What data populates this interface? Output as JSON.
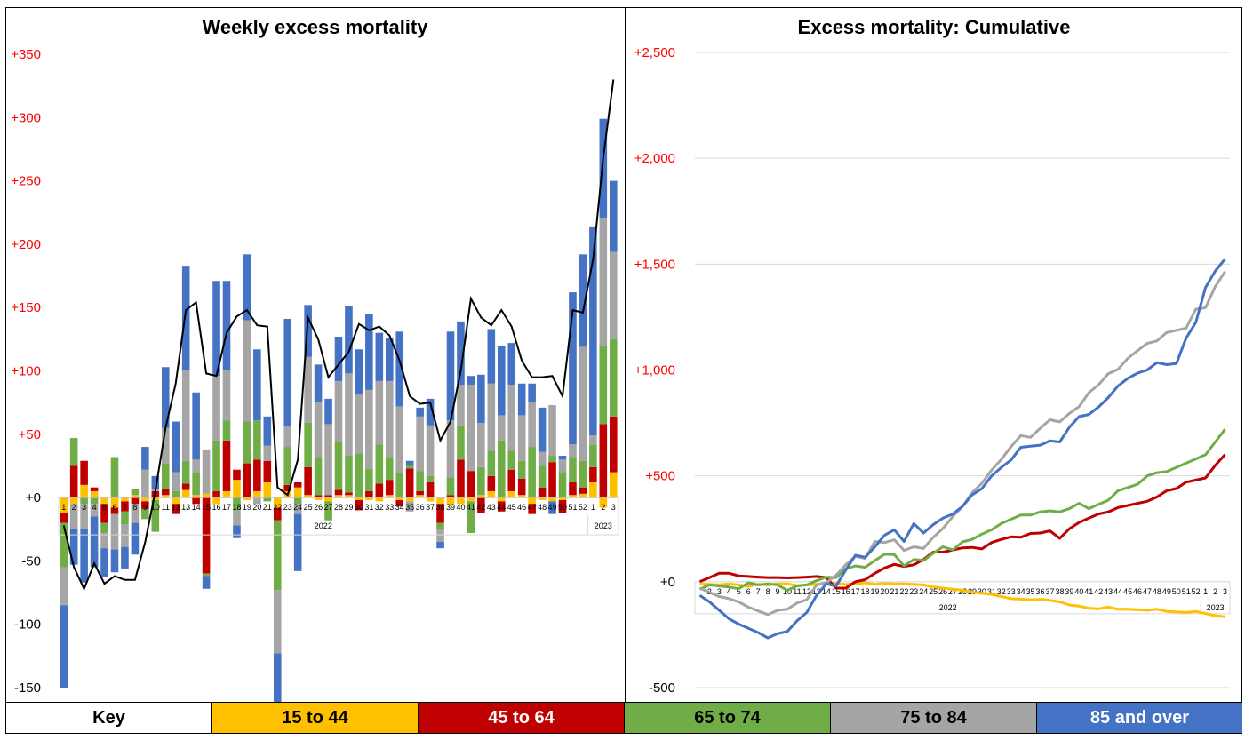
{
  "colors": {
    "15to44": "#FFC000",
    "45to64": "#C00000",
    "65to74": "#70AD47",
    "75to84": "#A5A5A5",
    "85plus": "#4472C4",
    "total": "#000000",
    "axis_label": "#FF0000",
    "grid": "#D9D9D9"
  },
  "key": {
    "label": "Key",
    "items": [
      {
        "label": "15 to 44",
        "color": "#FFC000",
        "text_color": "#000000"
      },
      {
        "label": "45 to 64",
        "color": "#C00000",
        "text_color": "#FFFFFF"
      },
      {
        "label": "65 to 74",
        "color": "#70AD47",
        "text_color": "#000000"
      },
      {
        "label": "75 to 84",
        "color": "#A5A5A5",
        "text_color": "#000000"
      },
      {
        "label": "85 and over",
        "color": "#4472C4",
        "text_color": "#FFFFFF"
      }
    ]
  },
  "chart_data": [
    {
      "type": "bar",
      "stacked": true,
      "title": "Weekly excess mortality",
      "ylim": [
        -150,
        350
      ],
      "yticks": [
        -150,
        -100,
        -50,
        0,
        50,
        100,
        150,
        200,
        250,
        300,
        350
      ],
      "ytick_labels": [
        "-150",
        "-100",
        "-50",
        "+0",
        "+50",
        "+100",
        "+150",
        "+200",
        "+250",
        "+300",
        "+350"
      ],
      "categories": [
        "1",
        "2",
        "3",
        "4",
        "5",
        "6",
        "7",
        "8",
        "9",
        "10",
        "11",
        "12",
        "13",
        "14",
        "15",
        "16",
        "17",
        "18",
        "19",
        "20",
        "21",
        "22",
        "23",
        "24",
        "25",
        "26",
        "27",
        "28",
        "29",
        "30",
        "31",
        "32",
        "33",
        "34",
        "35",
        "36",
        "37",
        "38",
        "39",
        "40",
        "41",
        "42",
        "43",
        "44",
        "45",
        "46",
        "47",
        "48",
        "49",
        "50",
        "51",
        "52",
        "1",
        "2",
        "3"
      ],
      "year_labels": [
        {
          "label": "2022",
          "from": 0,
          "to": 51
        },
        {
          "label": "2023",
          "from": 52,
          "to": 54
        }
      ],
      "series": [
        {
          "name": "15 to 44",
          "values": [
            -12,
            -5,
            10,
            5,
            -5,
            -8,
            -3,
            2,
            -3,
            -2,
            2,
            -5,
            6,
            2,
            3,
            -5,
            5,
            14,
            -2,
            5,
            12,
            -8,
            5,
            8,
            2,
            -2,
            -3,
            2,
            2,
            -2,
            -2,
            -3,
            2,
            -2,
            -3,
            2,
            -3,
            -5,
            -6,
            -5,
            -3,
            2,
            5,
            -3,
            5,
            2,
            -5,
            -2,
            -3,
            -2,
            2,
            3,
            12,
            -8,
            20
          ]
        },
        {
          "name": "45 to 64",
          "values": [
            -8,
            25,
            19,
            3,
            -15,
            -5,
            -8,
            -5,
            -6,
            5,
            5,
            -8,
            5,
            -5,
            -60,
            5,
            40,
            8,
            27,
            25,
            17,
            -10,
            5,
            4,
            22,
            2,
            2,
            4,
            2,
            -8,
            5,
            11,
            12,
            -5,
            23,
            3,
            12,
            -15,
            2,
            30,
            21,
            -12,
            12,
            -8,
            17,
            13,
            -8,
            8,
            28,
            -10,
            10,
            5,
            12,
            58,
            44
          ]
        },
        {
          "name": "65 to 74",
          "values": [
            -35,
            22,
            -5,
            -5,
            -8,
            32,
            -10,
            5,
            -8,
            -25,
            20,
            5,
            18,
            18,
            -2,
            40,
            16,
            -10,
            33,
            31,
            -3,
            -55,
            30,
            -5,
            35,
            30,
            -15,
            38,
            29,
            35,
            18,
            31,
            18,
            20,
            2,
            16,
            5,
            -5,
            14,
            27,
            -25,
            22,
            20,
            45,
            15,
            14,
            40,
            17,
            5,
            20,
            20,
            21,
            18,
            62,
            61
          ]
        },
        {
          "name": "75 to 84",
          "values": [
            -30,
            -20,
            -20,
            -10,
            -12,
            -28,
            -18,
            -15,
            22,
            2,
            28,
            15,
            72,
            10,
            35,
            51,
            40,
            -12,
            80,
            -5,
            12,
            -50,
            16,
            -8,
            52,
            43,
            56,
            48,
            65,
            47,
            62,
            50,
            60,
            52,
            -8,
            43,
            40,
            -10,
            45,
            32,
            68,
            35,
            53,
            20,
            52,
            36,
            35,
            11,
            40,
            10,
            10,
            90,
            7,
            101,
            69
          ]
        },
        {
          "name": "85 and over",
          "values": [
            -65,
            -28,
            -42,
            -40,
            -23,
            -18,
            -17,
            -25,
            18,
            10,
            48,
            40,
            82,
            53,
            -10,
            75,
            70,
            -10,
            52,
            56,
            23,
            -52,
            85,
            -45,
            41,
            30,
            20,
            35,
            53,
            35,
            60,
            38,
            34,
            59,
            4,
            7,
            21,
            -5,
            70,
            50,
            7,
            38,
            43,
            55,
            33,
            25,
            15,
            35,
            -10,
            3,
            120,
            73,
            165,
            78,
            56
          ]
        }
      ],
      "total_line": {
        "name": "Total",
        "values": [
          -22,
          -55,
          -72,
          -52,
          -68,
          -62,
          -65,
          -65,
          -35,
          5,
          55,
          90,
          148,
          154,
          98,
          96,
          130,
          143,
          148,
          136,
          135,
          8,
          2,
          30,
          142,
          125,
          95,
          105,
          115,
          137,
          132,
          135,
          128,
          108,
          80,
          74,
          75,
          45,
          60,
          100,
          157,
          142,
          136,
          148,
          135,
          108,
          95,
          95,
          96,
          80,
          148,
          146,
          188,
          268,
          330
        ]
      }
    },
    {
      "type": "line",
      "title": "Excess mortality: Cumulative",
      "ylim": [
        -500,
        2500
      ],
      "yticks": [
        -500,
        0,
        500,
        1000,
        1500,
        2000,
        2500
      ],
      "ytick_labels": [
        "-500",
        "+0",
        "+500",
        "+1,000",
        "+1,500",
        "+2,000",
        "+2,500"
      ],
      "categories": [
        "1",
        "2",
        "3",
        "4",
        "5",
        "6",
        "7",
        "8",
        "9",
        "10",
        "11",
        "12",
        "13",
        "14",
        "15",
        "16",
        "17",
        "18",
        "19",
        "20",
        "21",
        "22",
        "23",
        "24",
        "25",
        "26",
        "27",
        "28",
        "29",
        "30",
        "31",
        "32",
        "33",
        "34",
        "35",
        "36",
        "37",
        "38",
        "39",
        "40",
        "41",
        "42",
        "43",
        "44",
        "45",
        "46",
        "47",
        "48",
        "49",
        "50",
        "51",
        "52",
        "1",
        "2",
        "3"
      ],
      "year_labels": [
        {
          "label": "2022",
          "from": 0,
          "to": 51
        },
        {
          "label": "2023",
          "from": 52,
          "to": 54
        }
      ],
      "series": [
        {
          "name": "15 to 44",
          "values": [
            -10,
            -12,
            -14,
            -10,
            -15,
            -22,
            -12,
            -15,
            -10,
            -10,
            -18,
            -15,
            -12,
            -10,
            -8,
            -13,
            -10,
            -5,
            -12,
            -8,
            -10,
            -10,
            -12,
            -15,
            -25,
            -30,
            -35,
            -40,
            -50,
            -55,
            -60,
            -70,
            -80,
            -82,
            -85,
            -83,
            -88,
            -95,
            -110,
            -115,
            -125,
            -128,
            -120,
            -130,
            -130,
            -132,
            -135,
            -130,
            -140,
            -142,
            -145,
            -140,
            -150,
            -160,
            -165
          ]
        },
        {
          "name": "45 to 64",
          "values": [
            0,
            20,
            40,
            40,
            28,
            25,
            22,
            20,
            20,
            18,
            20,
            22,
            25,
            20,
            -30,
            -30,
            0,
            10,
            40,
            65,
            82,
            72,
            80,
            105,
            140,
            140,
            150,
            160,
            162,
            155,
            185,
            200,
            212,
            210,
            228,
            230,
            240,
            205,
            250,
            280,
            300,
            320,
            330,
            350,
            360,
            370,
            380,
            400,
            430,
            440,
            470,
            480,
            490,
            550,
            600
          ]
        },
        {
          "name": "65 to 74",
          "values": [
            -35,
            -15,
            -20,
            -25,
            -33,
            -5,
            -15,
            -10,
            -15,
            -40,
            -20,
            -15,
            5,
            22,
            20,
            60,
            75,
            68,
            100,
            130,
            128,
            75,
            105,
            100,
            135,
            165,
            150,
            188,
            200,
            225,
            245,
            275,
            295,
            315,
            315,
            330,
            335,
            330,
            345,
            370,
            345,
            365,
            385,
            430,
            445,
            460,
            500,
            515,
            520,
            540,
            560,
            580,
            600,
            660,
            720
          ]
        },
        {
          "name": "75 to 84",
          "values": [
            -30,
            -50,
            -70,
            -80,
            -95,
            -120,
            -138,
            -155,
            -135,
            -130,
            -100,
            -85,
            -15,
            -5,
            30,
            80,
            120,
            110,
            190,
            185,
            198,
            148,
            165,
            157,
            210,
            252,
            308,
            355,
            420,
            465,
            527,
            578,
            638,
            690,
            682,
            725,
            765,
            755,
            795,
            827,
            893,
            930,
            983,
            1003,
            1055,
            1091,
            1126,
            1137,
            1177,
            1187,
            1197,
            1287,
            1294,
            1395,
            1464
          ]
        },
        {
          "name": "85 and over",
          "values": [
            -65,
            -95,
            -135,
            -175,
            -200,
            -220,
            -240,
            -265,
            -245,
            -235,
            -185,
            -145,
            -65,
            -10,
            -20,
            55,
            125,
            115,
            165,
            220,
            245,
            190,
            275,
            230,
            270,
            300,
            320,
            355,
            410,
            440,
            500,
            540,
            575,
            635,
            640,
            645,
            665,
            660,
            730,
            780,
            790,
            825,
            870,
            925,
            960,
            985,
            1000,
            1035,
            1025,
            1030,
            1150,
            1225,
            1390,
            1468,
            1524
          ]
        }
      ]
    }
  ]
}
